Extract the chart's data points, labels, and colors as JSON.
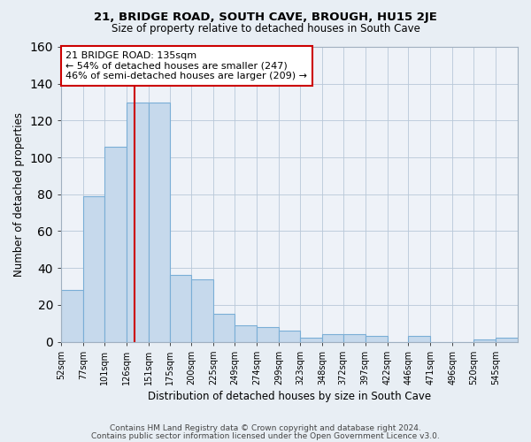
{
  "title": "21, BRIDGE ROAD, SOUTH CAVE, BROUGH, HU15 2JE",
  "subtitle": "Size of property relative to detached houses in South Cave",
  "xlabel": "Distribution of detached houses by size in South Cave",
  "ylabel": "Number of detached properties",
  "bar_color": "#c6d9ec",
  "bar_edgecolor": "#7aaed6",
  "ref_line_x": 135,
  "ref_line_color": "#cc0000",
  "categories": [
    "52sqm",
    "77sqm",
    "101sqm",
    "126sqm",
    "151sqm",
    "175sqm",
    "200sqm",
    "225sqm",
    "249sqm",
    "274sqm",
    "299sqm",
    "323sqm",
    "348sqm",
    "372sqm",
    "397sqm",
    "422sqm",
    "446sqm",
    "471sqm",
    "496sqm",
    "520sqm",
    "545sqm"
  ],
  "values": [
    28,
    79,
    106,
    130,
    130,
    36,
    34,
    15,
    9,
    8,
    6,
    2,
    4,
    4,
    3,
    0,
    3,
    0,
    0,
    1,
    2
  ],
  "bin_edges": [
    52,
    77,
    101,
    126,
    151,
    175,
    200,
    225,
    249,
    274,
    299,
    323,
    348,
    372,
    397,
    422,
    446,
    471,
    496,
    520,
    545,
    570
  ],
  "annotation_text": "21 BRIDGE ROAD: 135sqm\n← 54% of detached houses are smaller (247)\n46% of semi-detached houses are larger (209) →",
  "annotation_box_color": "#ffffff",
  "annotation_box_edgecolor": "#cc0000",
  "footer_line1": "Contains HM Land Registry data © Crown copyright and database right 2024.",
  "footer_line2": "Contains public sector information licensed under the Open Government Licence v3.0.",
  "bg_color": "#e8eef4",
  "plot_bg_color": "#eef2f8",
  "grid_color": "#b8c8d8",
  "ylim": [
    0,
    160
  ],
  "yticks": [
    0,
    20,
    40,
    60,
    80,
    100,
    120,
    140,
    160
  ]
}
